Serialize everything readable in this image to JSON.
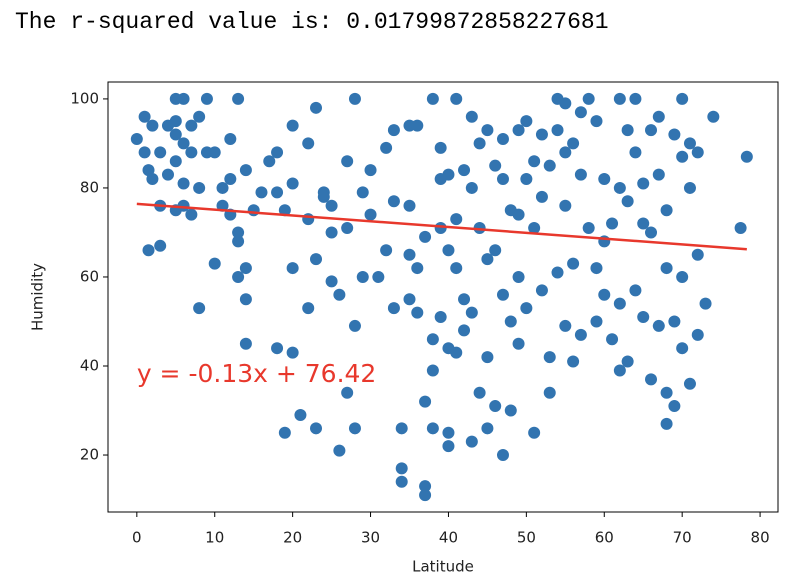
{
  "header": {
    "text": "The r-squared value is: 0.01799872858227681"
  },
  "chart_data": {
    "type": "scatter",
    "xlabel": "Latitude",
    "ylabel": "Humidity",
    "color": "#3274b0",
    "xlim": [
      -3.7,
      82.3
    ],
    "ylim": [
      7.2,
      103.8
    ],
    "xticks": [
      0,
      10,
      20,
      30,
      40,
      50,
      60,
      70,
      80
    ],
    "yticks": [
      20,
      40,
      60,
      80,
      100
    ],
    "x": [
      0,
      1,
      1,
      2,
      1.5,
      2,
      3,
      3,
      4,
      1.5,
      3,
      4,
      5,
      5,
      5,
      6,
      6,
      5,
      6,
      6,
      5,
      7,
      7,
      7,
      8,
      8,
      8,
      9,
      9,
      10,
      10,
      11,
      11,
      12,
      12,
      12,
      13,
      13,
      13,
      13,
      14,
      14,
      14,
      14,
      15,
      16,
      17,
      18,
      18,
      18,
      19,
      19,
      20,
      20,
      20,
      20,
      21,
      22,
      22,
      22,
      23,
      23,
      23,
      24,
      24,
      25,
      25,
      25,
      26,
      26,
      27,
      27,
      27,
      28,
      28,
      28,
      29,
      29,
      30,
      30,
      31,
      32,
      32,
      33,
      33,
      33,
      34,
      34,
      34,
      35,
      35,
      35,
      35,
      36,
      36,
      36,
      37,
      37,
      37,
      37,
      38,
      38,
      38,
      38,
      39,
      39,
      39,
      39,
      40,
      40,
      40,
      40,
      40,
      41,
      41,
      41,
      41,
      42,
      42,
      42,
      43,
      43,
      43,
      43,
      44,
      44,
      44,
      45,
      45,
      45,
      45,
      46,
      46,
      46,
      47,
      47,
      47,
      47,
      48,
      48,
      48,
      49,
      49,
      49,
      49,
      50,
      50,
      50,
      51,
      51,
      51,
      52,
      52,
      52,
      53,
      53,
      53,
      54,
      54,
      54,
      55,
      55,
      55,
      55,
      56,
      56,
      56,
      57,
      57,
      57,
      58,
      58,
      59,
      59,
      59,
      60,
      60,
      60,
      61,
      61,
      62,
      62,
      62,
      62,
      63,
      63,
      63,
      64,
      64,
      64,
      65,
      65,
      65,
      66,
      66,
      66,
      67,
      67,
      67,
      68,
      68,
      68,
      68,
      69,
      69,
      69,
      70,
      70,
      70,
      70,
      71,
      71,
      71,
      72,
      72,
      72,
      73,
      74,
      77.5,
      78.3
    ],
    "values": [
      91,
      96,
      88,
      94,
      84,
      82,
      76,
      88,
      83,
      66,
      67,
      94,
      95,
      92,
      100,
      100,
      90,
      86,
      81,
      76,
      75,
      94,
      88,
      74,
      96,
      80,
      53,
      100,
      88,
      88,
      63,
      80,
      76,
      91,
      82,
      74,
      100,
      70,
      68,
      60,
      84,
      62,
      55,
      45,
      75,
      79,
      86,
      88,
      79,
      44,
      25,
      75,
      94,
      81,
      62,
      43,
      29,
      73,
      90,
      53,
      98,
      64,
      26,
      79,
      78,
      76,
      70,
      59,
      56,
      21,
      86,
      71,
      34,
      100,
      49,
      26,
      79,
      60,
      84,
      74,
      60,
      89,
      66,
      93,
      77,
      53,
      17,
      14,
      26,
      94,
      76,
      65,
      55,
      94,
      62,
      52,
      69,
      32,
      11,
      13,
      100,
      46,
      39,
      26,
      89,
      82,
      71,
      51,
      83,
      66,
      44,
      25,
      22,
      100,
      73,
      62,
      43,
      84,
      55,
      48,
      96,
      80,
      52,
      23,
      90,
      71,
      34,
      93,
      64,
      42,
      26,
      85,
      66,
      31,
      91,
      82,
      56,
      20,
      75,
      50,
      30,
      93,
      74,
      60,
      45,
      95,
      82,
      53,
      86,
      71,
      25,
      92,
      78,
      57,
      85,
      42,
      34,
      100,
      93,
      61,
      99,
      88,
      76,
      49,
      90,
      63,
      41,
      97,
      83,
      47,
      100,
      71,
      95,
      62,
      50,
      82,
      68,
      56,
      72,
      46,
      100,
      80,
      54,
      39,
      93,
      77,
      41,
      100,
      88,
      57,
      81,
      72,
      51,
      93,
      70,
      37,
      96,
      83,
      49,
      75,
      62,
      34,
      27,
      92,
      50,
      31,
      100,
      87,
      60,
      44,
      90,
      80,
      36,
      88,
      65,
      47,
      54,
      96,
      71,
      87
    ],
    "regression": {
      "x": [
        0,
        78.3
      ],
      "values": [
        76.42,
        66.24
      ],
      "color": "#e8382c"
    },
    "annotation": {
      "text": "y = -0.13x + 76.42",
      "x": 0,
      "y": 38,
      "color": "#e8382c"
    }
  }
}
